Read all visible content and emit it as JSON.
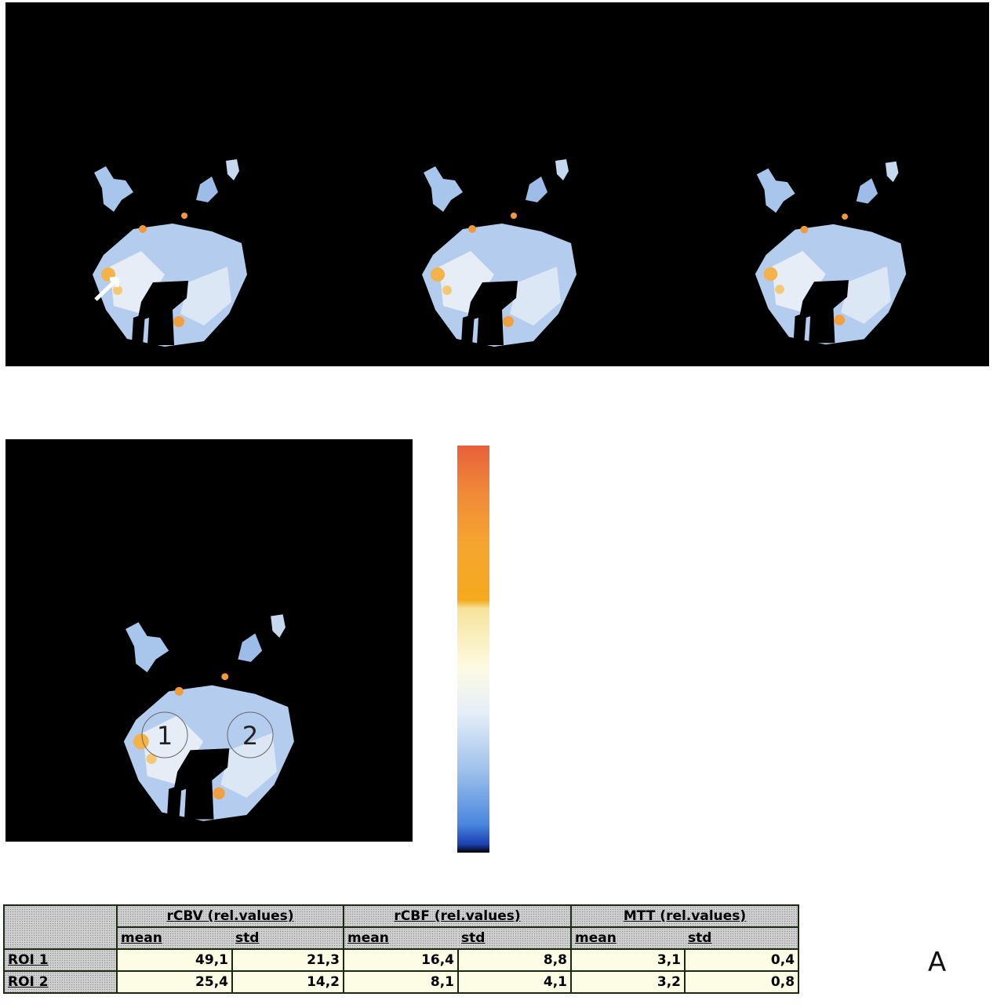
{
  "panel_label": "A",
  "roi_markers": [
    "1",
    "2"
  ],
  "table": {
    "groups": [
      "rCBV (rel.values)",
      "rCBF (rel.values)",
      "MTT (rel.values)"
    ],
    "subheaders": [
      "mean",
      "std",
      "mean",
      "std",
      "mean",
      "std"
    ],
    "rows": [
      [
        "ROI 1",
        "49,1",
        "21,3",
        "16,4",
        "8,8",
        "3,1",
        "0,4"
      ],
      [
        "ROI 2",
        "25,4",
        "14,2",
        "8,1",
        "4,1",
        "3,2",
        "0,8"
      ]
    ]
  }
}
